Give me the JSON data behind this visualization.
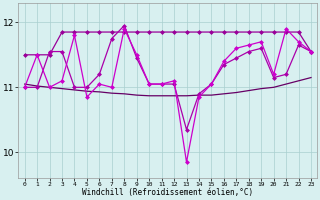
{
  "xlabel": "Windchill (Refroidissement éolien,°C)",
  "x": [
    0,
    1,
    2,
    3,
    4,
    5,
    6,
    7,
    8,
    9,
    10,
    11,
    12,
    13,
    14,
    15,
    16,
    17,
    18,
    19,
    20,
    21,
    22,
    23
  ],
  "line_main": [
    11.0,
    11.5,
    11.0,
    11.1,
    11.8,
    10.85,
    11.05,
    11.0,
    11.9,
    11.5,
    11.05,
    11.05,
    11.1,
    9.85,
    10.85,
    11.05,
    11.4,
    11.6,
    11.65,
    11.7,
    11.2,
    11.9,
    11.7,
    11.55
  ],
  "line_upper": [
    11.5,
    11.5,
    11.5,
    11.85,
    11.85,
    11.85,
    11.85,
    11.85,
    11.85,
    11.85,
    11.85,
    11.85,
    11.85,
    11.85,
    11.85,
    11.85,
    11.85,
    11.85,
    11.85,
    11.85,
    11.85,
    11.85,
    11.85,
    11.55
  ],
  "line_reg": [
    11.05,
    11.02,
    11.0,
    10.98,
    10.96,
    10.94,
    10.93,
    10.91,
    10.9,
    10.88,
    10.87,
    10.87,
    10.87,
    10.87,
    10.88,
    10.88,
    10.9,
    10.92,
    10.95,
    10.98,
    11.0,
    11.05,
    11.1,
    11.15
  ],
  "line_2": [
    11.0,
    11.0,
    11.55,
    11.55,
    11.0,
    11.0,
    11.2,
    11.75,
    11.95,
    11.45,
    11.05,
    11.05,
    11.05,
    10.35,
    10.9,
    11.05,
    11.35,
    11.45,
    11.55,
    11.6,
    11.15,
    11.2,
    11.65,
    11.55
  ],
  "color_main": "#cc00cc",
  "color_upper": "#990099",
  "color_reg": "#660066",
  "color_2": "#aa00aa",
  "bg_color": "#d8f0f0",
  "grid_color": "#aacfcf",
  "ylim": [
    9.6,
    12.3
  ],
  "yticks": [
    10,
    11,
    12
  ],
  "marker": "D",
  "marker_size": 2.5,
  "lw": 0.9
}
